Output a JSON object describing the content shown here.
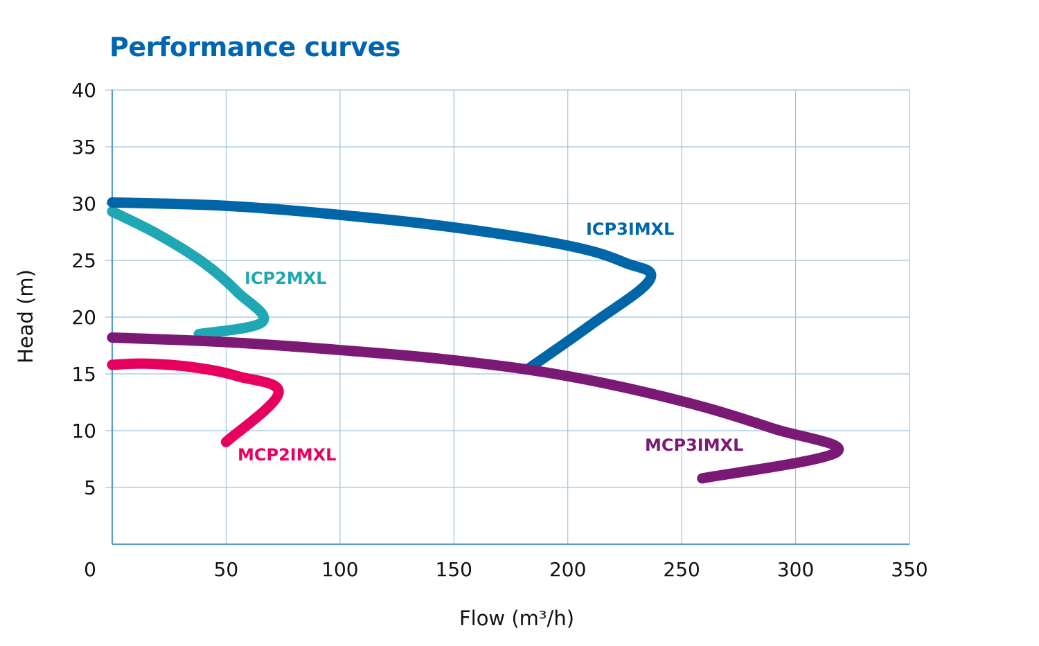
{
  "chart_data": {
    "type": "line",
    "title": "Performance curves",
    "xlabel": "Flow (m³/h)",
    "ylabel": "Head (m)",
    "xlim": [
      0,
      350
    ],
    "ylim": [
      0,
      40
    ],
    "x_ticks": [
      "0",
      "50",
      "100",
      "150",
      "200",
      "250",
      "300",
      "350"
    ],
    "y_ticks": [
      "5",
      "10",
      "15",
      "20",
      "25",
      "30",
      "35",
      "40"
    ],
    "grid": true,
    "legend": "inline labels",
    "series": [
      {
        "name": "ICP3IMXL",
        "color": "#0066a8",
        "points": [
          [
            0,
            30.1
          ],
          [
            50,
            29.8
          ],
          [
            100,
            29.0
          ],
          [
            150,
            27.9
          ],
          [
            200,
            26.3
          ],
          [
            225,
            24.8
          ],
          [
            236,
            23.3
          ],
          [
            210,
            19.3
          ],
          [
            183,
            15.5
          ]
        ]
      },
      {
        "name": "ICP2MXL",
        "color": "#1fa8b3",
        "points": [
          [
            0,
            29.3
          ],
          [
            20,
            27.3
          ],
          [
            40,
            24.8
          ],
          [
            55,
            22.2
          ],
          [
            66,
            19.6
          ],
          [
            38,
            18.5
          ]
        ]
      },
      {
        "name": "MCP3IMXL",
        "color": "#7b1a75",
        "points": [
          [
            0,
            18.2
          ],
          [
            50,
            17.8
          ],
          [
            100,
            17.1
          ],
          [
            150,
            16.2
          ],
          [
            200,
            14.8
          ],
          [
            250,
            12.6
          ],
          [
            290,
            10.2
          ],
          [
            318,
            8.1
          ],
          [
            259,
            5.8
          ]
        ]
      },
      {
        "name": "MCP2IMXL",
        "color": "#e8005f",
        "points": [
          [
            0,
            15.8
          ],
          [
            15,
            15.9
          ],
          [
            35,
            15.6
          ],
          [
            55,
            14.8
          ],
          [
            73,
            13.3
          ],
          [
            50,
            9.0
          ]
        ]
      }
    ]
  }
}
